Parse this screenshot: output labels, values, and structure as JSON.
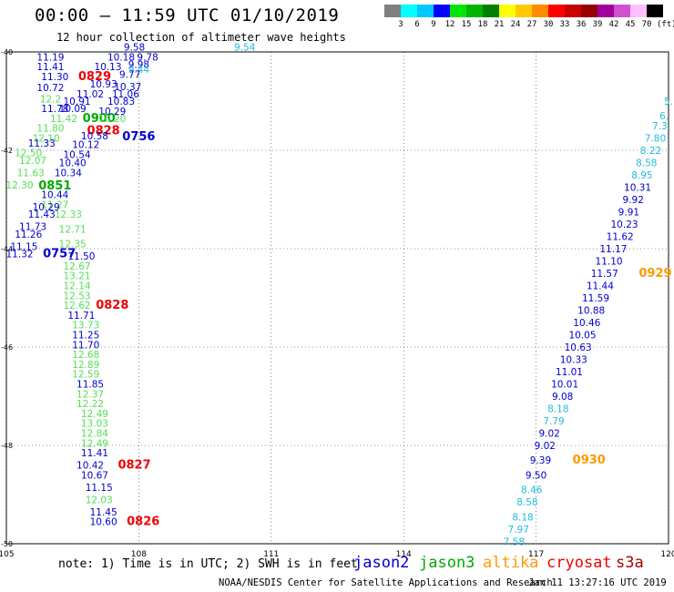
{
  "header": {
    "title": "00:00 — 11:59 UTC 01/10/2019",
    "subtitle": "12 hour collection of altimeter wave heights"
  },
  "color_scale": {
    "colors": [
      "#808080",
      "#00ffff",
      "#00c8ff",
      "#0000ff",
      "#00e600",
      "#00b400",
      "#008000",
      "#ffff00",
      "#ffc800",
      "#ff8c00",
      "#ff0000",
      "#c80000",
      "#960000",
      "#a000a0",
      "#d050d0",
      "#ffc0ff",
      "#000000"
    ],
    "labels": [
      "3",
      "6",
      "9",
      "12",
      "15",
      "18",
      "21",
      "24",
      "27",
      "30",
      "33",
      "36",
      "39",
      "42",
      "45",
      "70"
    ],
    "unit": "(ft)"
  },
  "axes": {
    "x_ticks": [
      "105",
      "108",
      "111",
      "114",
      "117",
      "120"
    ],
    "y_ticks": [
      "-40",
      "-42",
      "-44",
      "-46",
      "-48",
      "-50"
    ]
  },
  "satellite_colors": {
    "jason2": "#0000cc",
    "jason3": "#00aa00",
    "altika": "#ff9900",
    "cryosat": "#ee0000",
    "s3a": "#aa0000",
    "green": "#55dd55",
    "cyan": "#22bbdd"
  },
  "legend": {
    "jason2": "jason2",
    "jason3": "jason3",
    "altika": "altika",
    "cryosat": "cryosat",
    "s3a": "s3a"
  },
  "footer": {
    "note": "note: 1) Time is in UTC; 2) SWH is in feet",
    "credit": "NOAA/NESDIS Center for Satellite Applications and Research",
    "timestamp": "Jan 11 13:27:16 UTC 2019"
  },
  "chart_data": {
    "type": "map",
    "xlim": [
      105,
      120
    ],
    "ylim": [
      -50,
      -40
    ],
    "labels": [
      {
        "lon": 110.4,
        "lat": -39.9,
        "text": "9.54",
        "c": "cyan"
      },
      {
        "lon": 107.9,
        "lat": -39.9,
        "text": "9.58",
        "c": "jason2"
      },
      {
        "lon": 108.2,
        "lat": -40.1,
        "text": "9.78",
        "c": "jason2"
      },
      {
        "lon": 107.6,
        "lat": -40.1,
        "text": "10.18",
        "c": "jason2"
      },
      {
        "lon": 108.0,
        "lat": -40.25,
        "text": "9.98",
        "c": "jason2"
      },
      {
        "lon": 106.0,
        "lat": -40.1,
        "text": "11.19",
        "c": "jason2"
      },
      {
        "lon": 107.3,
        "lat": -40.3,
        "text": "10.13",
        "c": "jason2"
      },
      {
        "lon": 108.0,
        "lat": -40.35,
        "text": "9.44",
        "c": "cyan"
      },
      {
        "lon": 106.0,
        "lat": -40.3,
        "text": "11.41",
        "c": "jason2"
      },
      {
        "lon": 107.8,
        "lat": -40.45,
        "text": "9.77",
        "c": "jason2"
      },
      {
        "lon": 107.0,
        "lat": -40.5,
        "text": "0829",
        "c": "cryosat",
        "big": 1
      },
      {
        "lon": 106.1,
        "lat": -40.5,
        "text": "11.30",
        "c": "jason2"
      },
      {
        "lon": 107.2,
        "lat": -40.65,
        "text": "10.93",
        "c": "jason2"
      },
      {
        "lon": 107.75,
        "lat": -40.7,
        "text": "10.37",
        "c": "jason2"
      },
      {
        "lon": 106.0,
        "lat": -40.72,
        "text": "10.72",
        "c": "jason2"
      },
      {
        "lon": 106.9,
        "lat": -40.85,
        "text": "11.02",
        "c": "jason2"
      },
      {
        "lon": 107.7,
        "lat": -40.85,
        "text": "11.06",
        "c": "jason2"
      },
      {
        "lon": 106.0,
        "lat": -40.95,
        "text": "12.2",
        "c": "green"
      },
      {
        "lon": 106.6,
        "lat": -41.0,
        "text": "10.91",
        "c": "jason2"
      },
      {
        "lon": 107.6,
        "lat": -41.0,
        "text": "10.83",
        "c": "jason2"
      },
      {
        "lon": 106.1,
        "lat": -41.15,
        "text": "11.78",
        "c": "jason2"
      },
      {
        "lon": 106.5,
        "lat": -41.15,
        "text": "10.09",
        "c": "jason2"
      },
      {
        "lon": 107.4,
        "lat": -41.2,
        "text": "10.29",
        "c": "jason2"
      },
      {
        "lon": 106.3,
        "lat": -41.35,
        "text": "11.42",
        "c": "green"
      },
      {
        "lon": 107.1,
        "lat": -41.35,
        "text": "0900",
        "c": "jason3",
        "big": 1
      },
      {
        "lon": 107.4,
        "lat": -41.35,
        "text": "10.20",
        "c": "green"
      },
      {
        "lon": 106.0,
        "lat": -41.55,
        "text": "11.80",
        "c": "green"
      },
      {
        "lon": 107.2,
        "lat": -41.6,
        "text": "0828",
        "c": "cryosat",
        "big": 1
      },
      {
        "lon": 107.0,
        "lat": -41.7,
        "text": "10.58",
        "c": "jason2"
      },
      {
        "lon": 108.0,
        "lat": -41.72,
        "text": "0756",
        "c": "jason2",
        "big": 1
      },
      {
        "lon": 105.9,
        "lat": -41.75,
        "text": "12.10",
        "c": "green"
      },
      {
        "lon": 106.8,
        "lat": -41.88,
        "text": "10.12",
        "c": "jason2"
      },
      {
        "lon": 105.8,
        "lat": -41.85,
        "text": "11.33",
        "c": "jason2"
      },
      {
        "lon": 105.5,
        "lat": -42.05,
        "text": "12.50",
        "c": "green"
      },
      {
        "lon": 106.6,
        "lat": -42.08,
        "text": "10.54",
        "c": "jason2"
      },
      {
        "lon": 105.6,
        "lat": -42.2,
        "text": "12.07",
        "c": "green"
      },
      {
        "lon": 106.5,
        "lat": -42.25,
        "text": "10.40",
        "c": "jason2"
      },
      {
        "lon": 105.55,
        "lat": -42.45,
        "text": "11.63",
        "c": "green"
      },
      {
        "lon": 106.4,
        "lat": -42.45,
        "text": "10.34",
        "c": "jason2"
      },
      {
        "lon": 105.3,
        "lat": -42.7,
        "text": "12.30",
        "c": "green"
      },
      {
        "lon": 106.1,
        "lat": -42.72,
        "text": "0851",
        "c": "jason3",
        "big": 1
      },
      {
        "lon": 106.1,
        "lat": -42.9,
        "text": "10.44",
        "c": "jason2"
      },
      {
        "lon": 106.1,
        "lat": -43.1,
        "text": "11.27",
        "c": "green"
      },
      {
        "lon": 105.9,
        "lat": -43.15,
        "text": "10.29",
        "c": "jason2"
      },
      {
        "lon": 105.8,
        "lat": -43.3,
        "text": "11.43",
        "c": "jason2"
      },
      {
        "lon": 106.4,
        "lat": -43.3,
        "text": "12.33",
        "c": "green"
      },
      {
        "lon": 105.6,
        "lat": -43.55,
        "text": "11.73",
        "c": "jason2"
      },
      {
        "lon": 106.5,
        "lat": -43.6,
        "text": "12.71",
        "c": "green"
      },
      {
        "lon": 105.5,
        "lat": -43.7,
        "text": "11.26",
        "c": "jason2"
      },
      {
        "lon": 106.5,
        "lat": -43.9,
        "text": "12.35",
        "c": "green"
      },
      {
        "lon": 105.4,
        "lat": -43.95,
        "text": "11.15",
        "c": "jason2"
      },
      {
        "lon": 105.3,
        "lat": -44.1,
        "text": "11.32",
        "c": "jason2"
      },
      {
        "lon": 106.2,
        "lat": -44.1,
        "text": "0757",
        "c": "jason2",
        "big": 1
      },
      {
        "lon": 106.7,
        "lat": -44.15,
        "text": "11.50",
        "c": "jason2"
      },
      {
        "lon": 106.6,
        "lat": -44.35,
        "text": "12.67",
        "c": "green"
      },
      {
        "lon": 106.6,
        "lat": -44.55,
        "text": "13.21",
        "c": "green"
      },
      {
        "lon": 106.6,
        "lat": -44.75,
        "text": "12.14",
        "c": "green"
      },
      {
        "lon": 106.6,
        "lat": -44.95,
        "text": "12.53",
        "c": "green"
      },
      {
        "lon": 106.6,
        "lat": -45.15,
        "text": "12.62",
        "c": "green"
      },
      {
        "lon": 107.4,
        "lat": -45.15,
        "text": "0828",
        "c": "cryosat",
        "big": 1
      },
      {
        "lon": 106.7,
        "lat": -45.35,
        "text": "11.71",
        "c": "jason2"
      },
      {
        "lon": 106.8,
        "lat": -45.55,
        "text": "13.73",
        "c": "green"
      },
      {
        "lon": 106.8,
        "lat": -45.75,
        "text": "11.25",
        "c": "jason2"
      },
      {
        "lon": 106.8,
        "lat": -45.95,
        "text": "11.70",
        "c": "jason2"
      },
      {
        "lon": 106.8,
        "lat": -46.15,
        "text": "12.68",
        "c": "green"
      },
      {
        "lon": 106.8,
        "lat": -46.35,
        "text": "12.89",
        "c": "green"
      },
      {
        "lon": 106.8,
        "lat": -46.55,
        "text": "12.59",
        "c": "green"
      },
      {
        "lon": 106.9,
        "lat": -46.75,
        "text": "11.85",
        "c": "jason2"
      },
      {
        "lon": 106.9,
        "lat": -46.95,
        "text": "12.37",
        "c": "green"
      },
      {
        "lon": 106.9,
        "lat": -47.15,
        "text": "12.22",
        "c": "green"
      },
      {
        "lon": 107.0,
        "lat": -47.35,
        "text": "12.49",
        "c": "green"
      },
      {
        "lon": 107.0,
        "lat": -47.55,
        "text": "13.03",
        "c": "green"
      },
      {
        "lon": 107.0,
        "lat": -47.75,
        "text": "12.84",
        "c": "green"
      },
      {
        "lon": 107.0,
        "lat": -47.95,
        "text": "12.49",
        "c": "green"
      },
      {
        "lon": 107.0,
        "lat": -48.15,
        "text": "11.41",
        "c": "jason2"
      },
      {
        "lon": 106.9,
        "lat": -48.4,
        "text": "10.42",
        "c": "jason2"
      },
      {
        "lon": 107.9,
        "lat": -48.4,
        "text": "0827",
        "c": "cryosat",
        "big": 1
      },
      {
        "lon": 107.0,
        "lat": -48.6,
        "text": "10.67",
        "c": "jason2"
      },
      {
        "lon": 107.1,
        "lat": -48.85,
        "text": "11.15",
        "c": "jason2"
      },
      {
        "lon": 107.1,
        "lat": -49.1,
        "text": "12.03",
        "c": "green"
      },
      {
        "lon": 107.2,
        "lat": -49.35,
        "text": "11.45",
        "c": "jason2"
      },
      {
        "lon": 107.2,
        "lat": -49.55,
        "text": "10.60",
        "c": "jason2"
      },
      {
        "lon": 108.1,
        "lat": -49.55,
        "text": "0826",
        "c": "cryosat",
        "big": 1
      },
      {
        "lon": 120.0,
        "lat": -41.0,
        "text": "5.",
        "c": "cyan"
      },
      {
        "lon": 119.9,
        "lat": -41.3,
        "text": "6.",
        "c": "cyan"
      },
      {
        "lon": 119.8,
        "lat": -41.5,
        "text": "7.3",
        "c": "cyan"
      },
      {
        "lon": 119.7,
        "lat": -41.75,
        "text": "7.80",
        "c": "cyan"
      },
      {
        "lon": 119.6,
        "lat": -42.0,
        "text": "8.22",
        "c": "cyan"
      },
      {
        "lon": 119.5,
        "lat": -42.25,
        "text": "8.58",
        "c": "cyan"
      },
      {
        "lon": 119.4,
        "lat": -42.5,
        "text": "8.95",
        "c": "cyan"
      },
      {
        "lon": 119.3,
        "lat": -42.75,
        "text": "10.31",
        "c": "jason2"
      },
      {
        "lon": 119.2,
        "lat": -43.0,
        "text": "9.92",
        "c": "jason2"
      },
      {
        "lon": 119.1,
        "lat": -43.25,
        "text": "9.91",
        "c": "jason2"
      },
      {
        "lon": 119.0,
        "lat": -43.5,
        "text": "10.23",
        "c": "jason2"
      },
      {
        "lon": 118.9,
        "lat": -43.75,
        "text": "11.62",
        "c": "jason2"
      },
      {
        "lon": 118.75,
        "lat": -44.0,
        "text": "11.17",
        "c": "jason2"
      },
      {
        "lon": 118.65,
        "lat": -44.25,
        "text": "11.10",
        "c": "jason2"
      },
      {
        "lon": 118.55,
        "lat": -44.5,
        "text": "11.57",
        "c": "jason2"
      },
      {
        "lon": 119.7,
        "lat": -44.5,
        "text": "0929",
        "c": "altika",
        "big": 1
      },
      {
        "lon": 118.45,
        "lat": -44.75,
        "text": "11.44",
        "c": "jason2"
      },
      {
        "lon": 118.35,
        "lat": -45.0,
        "text": "11.59",
        "c": "jason2"
      },
      {
        "lon": 118.25,
        "lat": -45.25,
        "text": "10.88",
        "c": "jason2"
      },
      {
        "lon": 118.15,
        "lat": -45.5,
        "text": "10.46",
        "c": "jason2"
      },
      {
        "lon": 118.05,
        "lat": -45.75,
        "text": "10.05",
        "c": "jason2"
      },
      {
        "lon": 117.95,
        "lat": -46.0,
        "text": "10.63",
        "c": "jason2"
      },
      {
        "lon": 117.85,
        "lat": -46.25,
        "text": "10.33",
        "c": "jason2"
      },
      {
        "lon": 117.75,
        "lat": -46.5,
        "text": "11.01",
        "c": "jason2"
      },
      {
        "lon": 117.65,
        "lat": -46.75,
        "text": "10.01",
        "c": "jason2"
      },
      {
        "lon": 117.6,
        "lat": -47.0,
        "text": "9.08",
        "c": "jason2"
      },
      {
        "lon": 117.5,
        "lat": -47.25,
        "text": "8.18",
        "c": "cyan"
      },
      {
        "lon": 117.4,
        "lat": -47.5,
        "text": "7.79",
        "c": "cyan"
      },
      {
        "lon": 117.3,
        "lat": -47.75,
        "text": "9.02",
        "c": "jason2"
      },
      {
        "lon": 117.2,
        "lat": -48.0,
        "text": "9.02",
        "c": "jason2"
      },
      {
        "lon": 117.1,
        "lat": -48.3,
        "text": "9.39",
        "c": "jason2"
      },
      {
        "lon": 118.2,
        "lat": -48.3,
        "text": "0930",
        "c": "altika",
        "big": 1
      },
      {
        "lon": 117.0,
        "lat": -48.6,
        "text": "9.50",
        "c": "jason2"
      },
      {
        "lon": 116.9,
        "lat": -48.9,
        "text": "8.46",
        "c": "cyan"
      },
      {
        "lon": 116.8,
        "lat": -49.15,
        "text": "8.58",
        "c": "cyan"
      },
      {
        "lon": 116.7,
        "lat": -49.45,
        "text": "8.18",
        "c": "cyan"
      },
      {
        "lon": 116.6,
        "lat": -49.7,
        "text": "7.97",
        "c": "cyan"
      },
      {
        "lon": 116.5,
        "lat": -49.95,
        "text": "7.58",
        "c": "cyan"
      }
    ]
  }
}
